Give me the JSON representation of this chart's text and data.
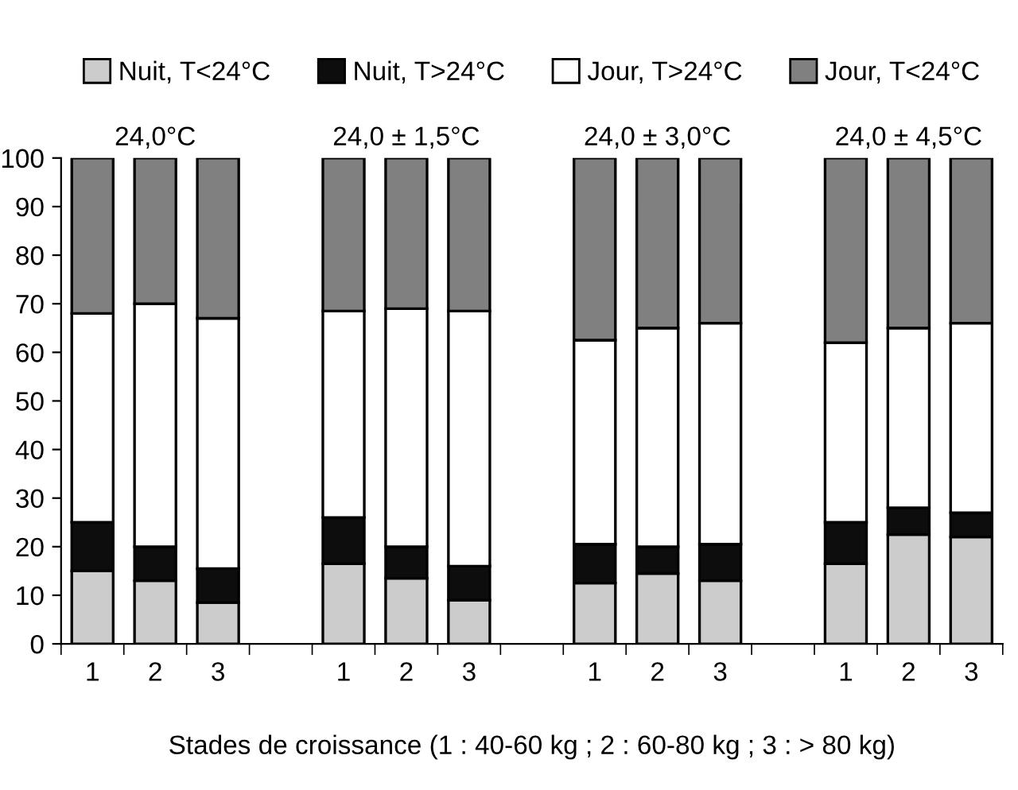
{
  "chart_data": {
    "type": "bar",
    "stacked": true,
    "categories": [
      "1",
      "2",
      "3",
      null,
      "1",
      "2",
      "3",
      null,
      "1",
      "2",
      "3",
      null,
      "1",
      "2",
      "3"
    ],
    "series": [
      {
        "name": "Nuit, T<24°C",
        "color": "#cccccc",
        "values": [
          15,
          13,
          8.5,
          null,
          16.5,
          13.5,
          9,
          null,
          12.5,
          14.5,
          13,
          null,
          16.5,
          22.5,
          22
        ]
      },
      {
        "name": "Nuit, T>24°C",
        "color": "#0d0d0d",
        "values": [
          10,
          7,
          7,
          null,
          9.5,
          6.5,
          7,
          null,
          8,
          5.5,
          7.5,
          null,
          8.5,
          5.5,
          5
        ]
      },
      {
        "name": "Jour, T>24°C",
        "color": "#ffffff",
        "values": [
          43,
          50,
          51.5,
          null,
          42.5,
          49,
          52.5,
          null,
          42,
          45,
          45.5,
          null,
          37,
          37,
          39
        ]
      },
      {
        "name": "Jour, T<24°C",
        "color": "#808080",
        "values": [
          32,
          30,
          33,
          null,
          31.5,
          31,
          31.5,
          null,
          37.5,
          35,
          34,
          null,
          38,
          35,
          34
        ]
      }
    ],
    "ylim": [
      0,
      100
    ],
    "yticks": [
      0,
      10,
      20,
      30,
      40,
      50,
      60,
      70,
      80,
      90,
      100
    ],
    "xlabel": "Stades de croissance (1 : 40-60 kg ; 2 : 60-80 kg ; 3 : > 80 kg)",
    "annotations": [
      "24,0°C",
      "24,0 ± 1,5°C",
      "24,0 ± 3,0°C",
      "24,0 ± 4,5°C"
    ],
    "legend": "top",
    "grid": false
  }
}
